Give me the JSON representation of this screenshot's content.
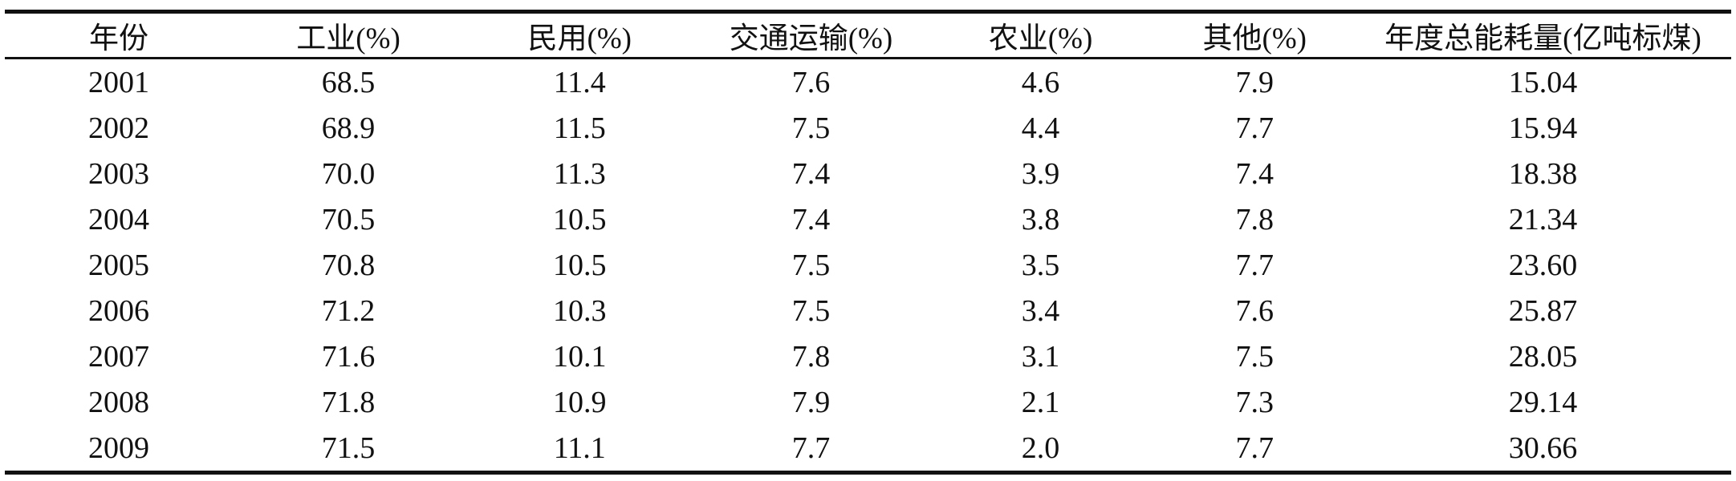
{
  "table": {
    "columns": [
      "年份",
      "工业(%)",
      "民用(%)",
      "交通运输(%)",
      "农业(%)",
      "其他(%)",
      "年度总能耗量(亿吨标煤)"
    ],
    "rows": [
      [
        "2001",
        "68.5",
        "11.4",
        "7.6",
        "4.6",
        "7.9",
        "15.04"
      ],
      [
        "2002",
        "68.9",
        "11.5",
        "7.5",
        "4.4",
        "7.7",
        "15.94"
      ],
      [
        "2003",
        "70.0",
        "11.3",
        "7.4",
        "3.9",
        "7.4",
        "18.38"
      ],
      [
        "2004",
        "70.5",
        "10.5",
        "7.4",
        "3.8",
        "7.8",
        "21.34"
      ],
      [
        "2005",
        "70.8",
        "10.5",
        "7.5",
        "3.5",
        "7.7",
        "23.60"
      ],
      [
        "2006",
        "71.2",
        "10.3",
        "7.5",
        "3.4",
        "7.6",
        "25.87"
      ],
      [
        "2007",
        "71.6",
        "10.1",
        "7.8",
        "3.1",
        "7.5",
        "28.05"
      ],
      [
        "2008",
        "71.8",
        "10.9",
        "7.9",
        "2.1",
        "7.3",
        "29.14"
      ],
      [
        "2009",
        "71.5",
        "11.1",
        "7.7",
        "2.0",
        "7.7",
        "30.66"
      ]
    ],
    "column_widths_percent": [
      13.2,
      13.4,
      13.4,
      13.4,
      13.2,
      11.6,
      21.8
    ]
  },
  "chart_data": {
    "type": "table",
    "title": "",
    "categories": [
      "2001",
      "2002",
      "2003",
      "2004",
      "2005",
      "2006",
      "2007",
      "2008",
      "2009"
    ],
    "series": [
      {
        "name": "工业(%)",
        "values": [
          68.5,
          68.9,
          70.0,
          70.5,
          70.8,
          71.2,
          71.6,
          71.8,
          71.5
        ]
      },
      {
        "name": "民用(%)",
        "values": [
          11.4,
          11.5,
          11.3,
          10.5,
          10.5,
          10.3,
          10.1,
          10.9,
          11.1
        ]
      },
      {
        "name": "交通运输(%)",
        "values": [
          7.6,
          7.5,
          7.4,
          7.4,
          7.5,
          7.5,
          7.8,
          7.9,
          7.7
        ]
      },
      {
        "name": "农业(%)",
        "values": [
          4.6,
          4.4,
          3.9,
          3.8,
          3.5,
          3.4,
          3.1,
          2.1,
          2.0
        ]
      },
      {
        "name": "其他(%)",
        "values": [
          7.9,
          7.7,
          7.4,
          7.8,
          7.7,
          7.6,
          7.5,
          7.3,
          7.7
        ]
      },
      {
        "name": "年度总能耗量(亿吨标煤)",
        "values": [
          15.04,
          15.94,
          18.38,
          21.34,
          23.6,
          25.87,
          28.05,
          29.14,
          30.66
        ]
      }
    ]
  },
  "colors": {
    "text": "#111111",
    "rule": "#111111",
    "background": "#ffffff"
  }
}
